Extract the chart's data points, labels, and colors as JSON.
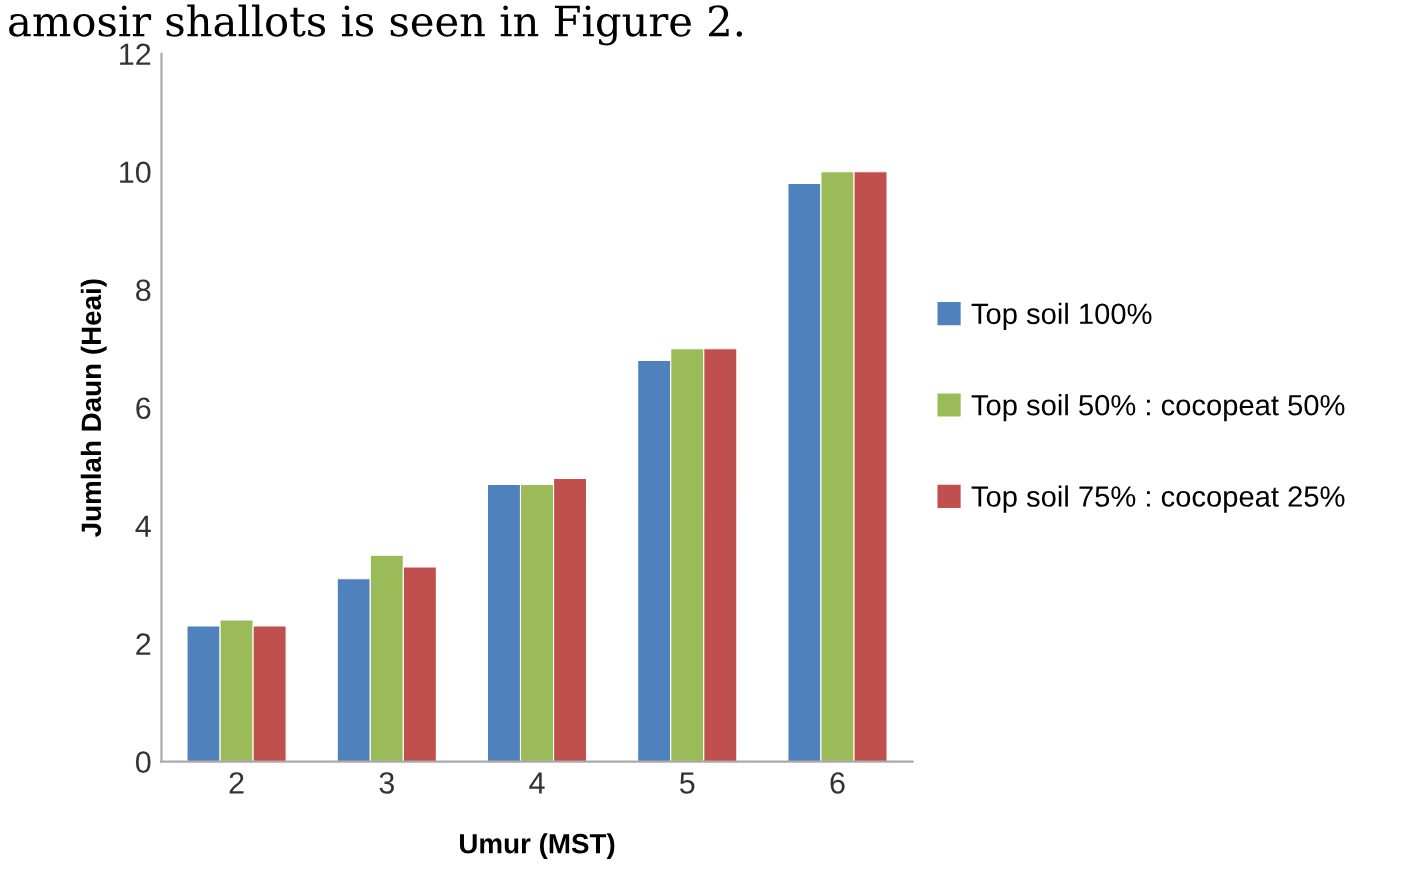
{
  "chart_data": {
    "type": "bar",
    "xlabel": "Umur (MST)",
    "ylabel": "Jumlah Daun (Heai)",
    "annotations": [
      "amosir shallots is seen in Figure 2."
    ],
    "categories": [
      "2",
      "3",
      "4",
      "5",
      "6"
    ],
    "series": [
      {
        "name": "Top soil 100%",
        "color": "#4f81bd",
        "values": [
          2.3,
          3.1,
          4.7,
          6.8,
          9.8
        ]
      },
      {
        "name": "Top soil 50% : cocopeat 50%",
        "color": "#9bbb59",
        "values": [
          2.4,
          3.5,
          4.7,
          7.0,
          10.0
        ]
      },
      {
        "name": "Top soil 75% : cocopeat 25%",
        "color": "#c0504d",
        "values": [
          2.3,
          3.3,
          4.8,
          7.0,
          10.0
        ]
      }
    ],
    "ylim": [
      0,
      12
    ],
    "yticks": [
      0,
      2,
      4,
      6,
      8,
      10,
      12
    ],
    "grid": false,
    "legend": "right"
  }
}
